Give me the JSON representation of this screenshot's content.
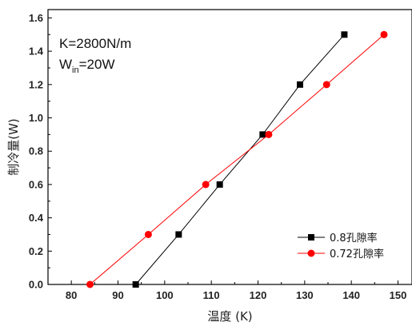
{
  "chart_data": {
    "type": "line",
    "xlabel": "温度 (K)",
    "ylabel": "制冷量(W)",
    "xlim": [
      75,
      153
    ],
    "ylim": [
      0,
      1.65
    ],
    "x_ticks": [
      80,
      90,
      100,
      110,
      120,
      130,
      140,
      150
    ],
    "y_ticks": [
      0.0,
      0.2,
      0.4,
      0.6,
      0.8,
      1.0,
      1.2,
      1.4,
      1.6
    ],
    "x_tick_labels": [
      "80",
      "90",
      "100",
      "110",
      "120",
      "130",
      "140",
      "150"
    ],
    "y_tick_labels": [
      "0.0",
      "0.2",
      "0.4",
      "0.6",
      "0.8",
      "1.0",
      "1.2",
      "1.4",
      "1.6"
    ],
    "grid": false,
    "legend_position": "bottom-right",
    "annotations": {
      "line1": "K=2800N/m",
      "line2_main": "W",
      "line2_sub": "in",
      "line2_rest": "=20W"
    },
    "series": [
      {
        "name": "0.8孔隙率",
        "color": "#000000",
        "marker": "square",
        "points": [
          [
            93.8,
            0.0
          ],
          [
            103.0,
            0.3
          ],
          [
            111.8,
            0.6
          ],
          [
            121.0,
            0.9
          ],
          [
            129.0,
            1.2
          ],
          [
            138.5,
            1.5
          ]
        ]
      },
      {
        "name": "0.72孔隙率",
        "color": "#ff0000",
        "marker": "circle",
        "points": [
          [
            84.0,
            0.0
          ],
          [
            96.5,
            0.3
          ],
          [
            108.8,
            0.6
          ],
          [
            122.3,
            0.9
          ],
          [
            134.7,
            1.2
          ],
          [
            147.0,
            1.5
          ]
        ]
      }
    ]
  }
}
